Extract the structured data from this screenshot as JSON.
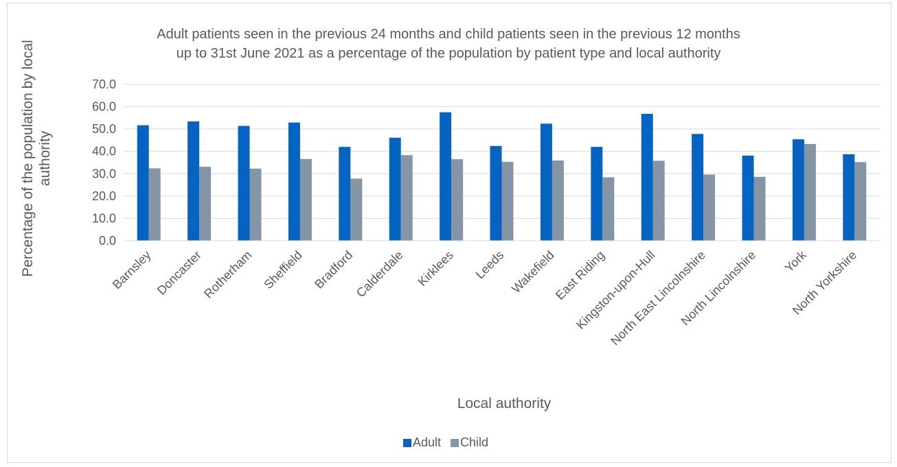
{
  "chart_data": {
    "type": "bar",
    "title_lines": [
      "Adult patients seen in the previous 24 months and child patients seen in the previous 12 months",
      "up to 31st June 2021 as a percentage of the population by patient type and local authority"
    ],
    "xlabel": "Local authority",
    "ylabel_lines": [
      "Percentage of the population by local",
      "authority"
    ],
    "ylim": [
      0,
      70
    ],
    "yticks": [
      "0.0",
      "10.0",
      "20.0",
      "30.0",
      "40.0",
      "50.0",
      "60.0",
      "70.0"
    ],
    "grid": true,
    "legend_position": "bottom",
    "categories": [
      "Barnsley",
      "Doncaster",
      "Rotherham",
      "Sheffield",
      "Bradford",
      "Calderdale",
      "Kirklees",
      "Leeds",
      "Wakefield",
      "East Riding",
      "Kingston-upon-Hull",
      "North East Lincolnshire",
      "North Lincolnshire",
      "York",
      "North Yorkshire"
    ],
    "series": [
      {
        "name": "Adult",
        "color": "#0563c1",
        "values": [
          51.7,
          53.4,
          51.4,
          52.9,
          42.0,
          46.1,
          57.5,
          42.4,
          52.4,
          42.0,
          56.8,
          47.8,
          38.1,
          45.4,
          38.7
        ]
      },
      {
        "name": "Child",
        "color": "#8496a6",
        "values": [
          32.4,
          33.1,
          32.3,
          36.6,
          27.8,
          38.3,
          36.5,
          35.3,
          35.9,
          28.4,
          35.8,
          29.6,
          28.6,
          43.3,
          35.2
        ]
      }
    ]
  }
}
